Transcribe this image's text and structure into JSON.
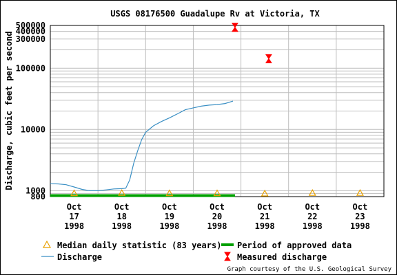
{
  "chart_data": {
    "type": "line",
    "title": "USGS 08176500 Guadalupe Rv at Victoria, TX",
    "ylabel": "Discharge, cubic feet per second",
    "xlabel": "",
    "y_scale": "log",
    "ylim": [
      800,
      500000
    ],
    "y_ticks": [
      "500000",
      "400000",
      "300000",
      "100000",
      "10000",
      "1000",
      "800"
    ],
    "x_range": [
      "1998-10-17T00:00",
      "1998-10-24T00:00"
    ],
    "x_ticks": [
      {
        "line1": "Oct",
        "line2": "17",
        "line3": "1998"
      },
      {
        "line1": "Oct",
        "line2": "18",
        "line3": "1998"
      },
      {
        "line1": "Oct",
        "line2": "19",
        "line3": "1998"
      },
      {
        "line1": "Oct",
        "line2": "20",
        "line3": "1998"
      },
      {
        "line1": "Oct",
        "line2": "21",
        "line3": "1998"
      },
      {
        "line1": "Oct",
        "line2": "22",
        "line3": "1998"
      },
      {
        "line1": "Oct",
        "line2": "23",
        "line3": "1998"
      }
    ],
    "grid": true,
    "series": [
      {
        "name": "Discharge",
        "color": "#3a8fc4",
        "points": [
          [
            "1998-10-17T00:00",
            1300
          ],
          [
            "1998-10-17T04:00",
            1290
          ],
          [
            "1998-10-17T08:00",
            1250
          ],
          [
            "1998-10-17T12:00",
            1150
          ],
          [
            "1998-10-17T16:00",
            1050
          ],
          [
            "1998-10-17T20:00",
            1000
          ],
          [
            "1998-10-18T00:00",
            1000
          ],
          [
            "1998-10-18T04:00",
            1030
          ],
          [
            "1998-10-18T08:00",
            1070
          ],
          [
            "1998-10-18T12:00",
            1080
          ],
          [
            "1998-10-18T14:00",
            1100
          ],
          [
            "1998-10-18T16:00",
            1500
          ],
          [
            "1998-10-18T18:00",
            2800
          ],
          [
            "1998-10-18T20:00",
            4500
          ],
          [
            "1998-10-18T22:00",
            6800
          ],
          [
            "1998-10-19T00:00",
            9000
          ],
          [
            "1998-10-19T04:00",
            11500
          ],
          [
            "1998-10-19T08:00",
            13500
          ],
          [
            "1998-10-19T12:00",
            15500
          ],
          [
            "1998-10-19T16:00",
            18000
          ],
          [
            "1998-10-19T20:00",
            21000
          ],
          [
            "1998-10-20T00:00",
            22500
          ],
          [
            "1998-10-20T04:00",
            24000
          ],
          [
            "1998-10-20T08:00",
            25000
          ],
          [
            "1998-10-20T12:00",
            25500
          ],
          [
            "1998-10-20T16:00",
            26500
          ],
          [
            "1998-10-20T20:00",
            29000
          ]
        ]
      },
      {
        "name": "Median daily statistic (83 years)",
        "color": "#e8a000",
        "points": [
          [
            "1998-10-17T12:00",
            920
          ],
          [
            "1998-10-18T12:00",
            930
          ],
          [
            "1998-10-19T12:00",
            920
          ],
          [
            "1998-10-20T12:00",
            920
          ],
          [
            "1998-10-21T12:00",
            910
          ],
          [
            "1998-10-22T12:00",
            930
          ],
          [
            "1998-10-23T12:00",
            930
          ]
        ]
      },
      {
        "name": "Measured discharge",
        "color": "#ff0000",
        "points": [
          [
            "1998-10-20T21:00",
            466000
          ],
          [
            "1998-10-21T14:00",
            143000
          ]
        ]
      },
      {
        "name": "Period of approved data",
        "color": "#00a000",
        "range": [
          "1998-10-17T00:00",
          "1998-10-20T21:00"
        ]
      }
    ],
    "legend": {
      "placement": "bottom",
      "entries": [
        "Median daily statistic (83 years)",
        "Period of approved data",
        "Discharge",
        "Measured discharge"
      ]
    },
    "credit": "Graph courtesy of the U.S. Geological Survey"
  }
}
